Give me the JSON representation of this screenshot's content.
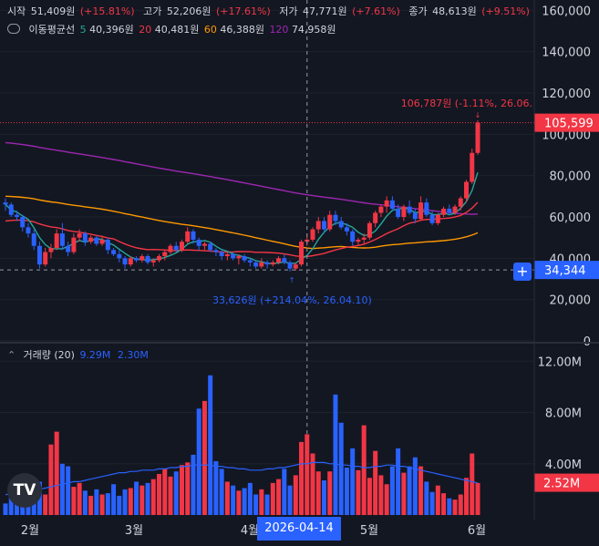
{
  "header": {
    "open_label": "시작",
    "open_value": "51,409원",
    "open_pct": "(+15.81%)",
    "high_label": "고가",
    "high_value": "52,206원",
    "high_pct": "(+17.61%)",
    "low_label": "저가",
    "low_value": "47,771원",
    "low_pct": "(+7.61%)",
    "close_label": "종가",
    "close_value": "48,613원",
    "close_pct": "(+9.51%)"
  },
  "ma_legend": {
    "label": "이동평균선",
    "ma5_period": "5",
    "ma5_value": "40,396원",
    "ma20_period": "20",
    "ma20_value": "40,481원",
    "ma60_period": "60",
    "ma60_value": "46,388원",
    "ma120_period": "120",
    "ma120_value": "74,958원"
  },
  "volume_legend": {
    "label": "거래량 (20)",
    "value1": "9.29M",
    "value2": "2.30M"
  },
  "hover_date": "2026-04-14",
  "logo_text": "TV",
  "plus_label": "+",
  "colors": {
    "up": "#f23645",
    "down": "#2962ff",
    "ma5": "#26a69a",
    "ma20": "#f23645",
    "ma60": "#ff9800",
    "ma120": "#9c27b0",
    "vol_ma": "#2962ff",
    "background": "#131722"
  },
  "chart_data": [
    {
      "type": "candlestick",
      "y_ticks": [
        "160,000",
        "140,000",
        "120,000",
        "100,000",
        "80,000",
        "60,000",
        "40,000",
        "20,000",
        "0"
      ],
      "ylim": [
        0,
        165000
      ],
      "x_labels": [
        "2월",
        "3월",
        "4월",
        "5월",
        "6월"
      ],
      "annotations": {
        "max_label": "106,787원 (-1.11%, 26.06.",
        "max_value": 106787,
        "min_label": "33,626원 (+214.04%, 26.04.10)",
        "min_value": 33626
      },
      "last_price_label": "105,599",
      "last_price": 105599,
      "crosshair_price_label": "34,344",
      "crosshair_price": 34344,
      "candles": [
        [
          67000,
          69000,
          63000,
          66000
        ],
        [
          66000,
          67000,
          60000,
          61000
        ],
        [
          61000,
          63000,
          58000,
          60000
        ],
        [
          60000,
          61000,
          53000,
          55000
        ],
        [
          55000,
          57000,
          50000,
          52000
        ],
        [
          52000,
          54000,
          44000,
          46000
        ],
        [
          46000,
          48000,
          35000,
          37000
        ],
        [
          37000,
          45000,
          36000,
          43000
        ],
        [
          43000,
          47000,
          40000,
          45000
        ],
        [
          45000,
          54000,
          44000,
          52000
        ],
        [
          52000,
          57000,
          44000,
          46000
        ],
        [
          46000,
          48000,
          41000,
          43000
        ],
        [
          43000,
          52000,
          42000,
          50000
        ],
        [
          50000,
          54000,
          48000,
          52000
        ],
        [
          52000,
          53000,
          46000,
          48000
        ],
        [
          48000,
          51000,
          47000,
          50000
        ],
        [
          50000,
          51000,
          46000,
          47000
        ],
        [
          47000,
          51000,
          46000,
          49000
        ],
        [
          49000,
          50000,
          42000,
          44000
        ],
        [
          44000,
          45000,
          41000,
          42000
        ],
        [
          42000,
          44000,
          38000,
          40000
        ],
        [
          40000,
          41000,
          35000,
          37000
        ],
        [
          37000,
          41000,
          36000,
          40000
        ],
        [
          40000,
          41000,
          38000,
          39000
        ],
        [
          39000,
          42000,
          38000,
          41000
        ],
        [
          41000,
          42000,
          37000,
          38000
        ],
        [
          38000,
          40000,
          36000,
          39000
        ],
        [
          39000,
          42000,
          38000,
          41000
        ],
        [
          41000,
          44000,
          39000,
          43000
        ],
        [
          43000,
          47000,
          42000,
          46000
        ],
        [
          46000,
          48000,
          43000,
          44000
        ],
        [
          44000,
          49000,
          43000,
          48000
        ],
        [
          48000,
          55000,
          47000,
          53000
        ],
        [
          53000,
          54000,
          47000,
          49000
        ],
        [
          49000,
          50000,
          44000,
          46000
        ],
        [
          46000,
          48000,
          44000,
          47000
        ],
        [
          47000,
          48000,
          43000,
          44000
        ],
        [
          44000,
          45000,
          41000,
          43000
        ],
        [
          43000,
          44000,
          39000,
          41000
        ],
        [
          41000,
          43000,
          39000,
          42000
        ],
        [
          42000,
          43000,
          39000,
          40000
        ],
        [
          40000,
          42000,
          37000,
          41000
        ],
        [
          41000,
          42000,
          38000,
          39000
        ],
        [
          39000,
          40000,
          36000,
          38000
        ],
        [
          38000,
          39000,
          35000,
          36000
        ],
        [
          36000,
          40000,
          35000,
          38000
        ],
        [
          38000,
          39000,
          35000,
          37000
        ],
        [
          37000,
          39000,
          36000,
          38000
        ],
        [
          38000,
          41000,
          37000,
          40000
        ],
        [
          40000,
          42000,
          37000,
          38000
        ],
        [
          38000,
          39000,
          33626,
          35000
        ],
        [
          35000,
          38000,
          34000,
          37000
        ],
        [
          37000,
          49000,
          36000,
          48000
        ],
        [
          48000,
          52000,
          46000,
          49000
        ],
        [
          49000,
          55000,
          48000,
          54000
        ],
        [
          54000,
          60000,
          52000,
          58000
        ],
        [
          58000,
          60000,
          52000,
          54000
        ],
        [
          54000,
          63000,
          53000,
          61000
        ],
        [
          61000,
          63000,
          56000,
          58000
        ],
        [
          58000,
          60000,
          54000,
          55000
        ],
        [
          55000,
          57000,
          51000,
          53000
        ],
        [
          53000,
          54000,
          46000,
          48000
        ],
        [
          48000,
          50000,
          46000,
          49000
        ],
        [
          49000,
          52000,
          47000,
          50000
        ],
        [
          50000,
          58000,
          49000,
          57000
        ],
        [
          57000,
          63000,
          55000,
          62000
        ],
        [
          62000,
          66000,
          60000,
          65000
        ],
        [
          65000,
          70000,
          62000,
          68000
        ],
        [
          68000,
          70000,
          63000,
          64000
        ],
        [
          64000,
          66000,
          59000,
          60000
        ],
        [
          60000,
          66000,
          58000,
          65000
        ],
        [
          65000,
          68000,
          61000,
          62000
        ],
        [
          62000,
          64000,
          57000,
          59000
        ],
        [
          59000,
          70000,
          58000,
          67000
        ],
        [
          67000,
          69000,
          60000,
          61000
        ],
        [
          61000,
          63000,
          56000,
          57000
        ],
        [
          57000,
          62000,
          56000,
          61000
        ],
        [
          61000,
          65000,
          60000,
          64000
        ],
        [
          64000,
          66000,
          61000,
          62000
        ],
        [
          62000,
          66000,
          61000,
          65000
        ],
        [
          65000,
          70000,
          63000,
          69000
        ],
        [
          69000,
          78000,
          67000,
          77000
        ],
        [
          77000,
          93000,
          76000,
          91000
        ],
        [
          91000,
          106787,
          90000,
          105599
        ]
      ]
    },
    {
      "type": "bar",
      "title": "거래량 (20)",
      "y_ticks": [
        "12.00M",
        "8.00M",
        "4.00M"
      ],
      "ylim": [
        0,
        13300000
      ],
      "last_volume_label": "2.52M",
      "last_volume": 2520000,
      "volume_ma": [
        1.6,
        1.6,
        1.65,
        1.7,
        1.8,
        1.9,
        2.0,
        2.1,
        2.2,
        2.3,
        2.4,
        2.5,
        2.6,
        2.6,
        2.7,
        2.8,
        2.9,
        3.0,
        3.1,
        3.2,
        3.3,
        3.3,
        3.4,
        3.4,
        3.5,
        3.5,
        3.5,
        3.6,
        3.6,
        3.7,
        3.7,
        3.8,
        3.8,
        3.9,
        3.9,
        3.9,
        3.9,
        3.8,
        3.8,
        3.7,
        3.7,
        3.6,
        3.6,
        3.5,
        3.5,
        3.5,
        3.6,
        3.6,
        3.7,
        3.7,
        3.8,
        3.9,
        4.0,
        4.0,
        4.1,
        4.1,
        4.1,
        4.0,
        4.0,
        3.9,
        3.9,
        3.8,
        3.8,
        3.7,
        3.7,
        3.8,
        3.8,
        3.9,
        3.9,
        3.8,
        3.8,
        3.7,
        3.6,
        3.5,
        3.4,
        3.3,
        3.2,
        3.1,
        3.0,
        2.9,
        2.8,
        2.7,
        2.6,
        2.5
      ],
      "volumes": [
        0.9,
        1.4,
        1.2,
        2.3,
        2.9,
        1.7,
        2.6,
        1.6,
        5.5,
        6.5,
        4.0,
        3.8,
        2.2,
        2.5,
        1.9,
        1.5,
        2.0,
        1.6,
        1.7,
        2.4,
        1.5,
        2.0,
        2.1,
        2.6,
        2.3,
        2.5,
        2.8,
        3.2,
        3.6,
        3.0,
        3.4,
        3.9,
        4.1,
        4.7,
        8.3,
        8.9,
        10.9,
        4.2,
        3.6,
        2.6,
        2.3,
        1.9,
        2.1,
        2.5,
        1.6,
        2.0,
        1.6,
        2.5,
        2.8,
        3.6,
        2.3,
        3.1,
        5.7,
        6.3,
        4.8,
        3.4,
        2.7,
        3.4,
        9.4,
        7.2,
        3.7,
        5.2,
        3.5,
        7.0,
        2.9,
        5.0,
        3.1,
        2.4,
        3.8,
        5.2,
        3.3,
        3.8,
        4.5,
        3.8,
        2.6,
        1.8,
        2.3,
        1.7,
        1.3,
        1.2,
        1.6,
        2.9,
        4.8,
        2.5
      ]
    }
  ]
}
